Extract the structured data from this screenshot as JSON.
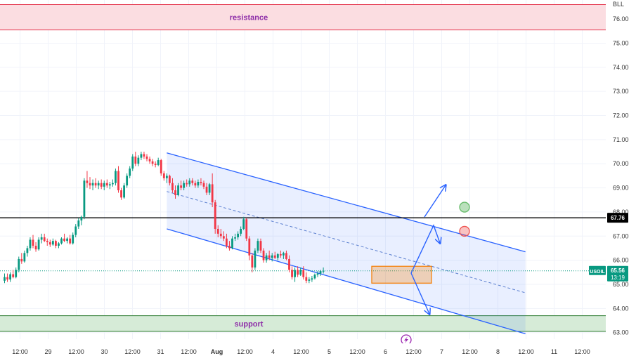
{
  "chart_data": {
    "type": "candlestick",
    "currency": "BLL",
    "symbol": "USOIL",
    "price_axis": {
      "range": [
        62.7,
        76.6
      ],
      "ticks": [
        76.0,
        75.0,
        74.0,
        73.0,
        72.0,
        71.0,
        70.0,
        69.0,
        68.0,
        67.0,
        66.0,
        65.0,
        64.0,
        63.0
      ]
    },
    "time_axis": {
      "labels": [
        "12:00",
        "29",
        "12:00",
        "30",
        "12:00",
        "31",
        "12:00",
        "Aug",
        "12:00",
        "4",
        "12:00",
        "5",
        "12:00",
        "6",
        "12:00",
        "7",
        "12:00",
        "8",
        "12:00",
        "11",
        "12:00"
      ],
      "bold_labels": [
        "Aug"
      ]
    },
    "current_price": {
      "label": "USOIL",
      "value": "65.56",
      "countdown": "13:19",
      "price": 65.56,
      "color": "#089981"
    },
    "horizontal_level": {
      "value": "67.76",
      "price": 67.76,
      "color": "#000000"
    },
    "zones": [
      {
        "label": "resistance",
        "from": 75.55,
        "to": 76.6,
        "fill": "#fbdde1",
        "border": "#e53950"
      },
      {
        "label": "support",
        "from": 63.05,
        "to": 63.7,
        "fill": "#d6ebd7",
        "border": "#2e7d32"
      }
    ],
    "channel": {
      "upper": [
        {
          "t": 57,
          "p": 70.45
        },
        {
          "t": 183,
          "p": 66.35
        }
      ],
      "lower": [
        {
          "t": 57,
          "p": 67.3
        },
        {
          "t": 183,
          "p": 62.95
        }
      ],
      "mid": [
        {
          "t": 57,
          "p": 68.85
        },
        {
          "t": 183,
          "p": 64.65
        }
      ],
      "color": "#2962ff"
    },
    "consolidation_box": {
      "t_from": 129,
      "t_to": 150,
      "p_from": 65.05,
      "p_to": 65.75,
      "color": "#f57c00"
    },
    "markers": [
      {
        "t": 165,
        "p": 68.2,
        "color": "#66bb6a"
      },
      {
        "t": 165,
        "p": 67.2,
        "color": "#ef5350"
      }
    ],
    "candles": [
      {
        "o": 65.15,
        "h": 65.45,
        "l": 65.05,
        "c": 65.3
      },
      {
        "o": 65.3,
        "h": 65.45,
        "l": 65.1,
        "c": 65.2
      },
      {
        "o": 65.2,
        "h": 65.5,
        "l": 65.1,
        "c": 65.42
      },
      {
        "o": 65.42,
        "h": 65.6,
        "l": 65.25,
        "c": 65.3
      },
      {
        "o": 65.3,
        "h": 65.7,
        "l": 65.25,
        "c": 65.6
      },
      {
        "o": 65.6,
        "h": 66.15,
        "l": 65.5,
        "c": 66.05
      },
      {
        "o": 66.05,
        "h": 66.3,
        "l": 65.85,
        "c": 65.95
      },
      {
        "o": 65.95,
        "h": 66.4,
        "l": 65.9,
        "c": 66.3
      },
      {
        "o": 66.3,
        "h": 66.6,
        "l": 66.15,
        "c": 66.5
      },
      {
        "o": 66.5,
        "h": 66.95,
        "l": 66.4,
        "c": 66.85
      },
      {
        "o": 66.85,
        "h": 67.05,
        "l": 66.5,
        "c": 66.6
      },
      {
        "o": 66.6,
        "h": 66.75,
        "l": 66.35,
        "c": 66.45
      },
      {
        "o": 66.45,
        "h": 66.95,
        "l": 66.4,
        "c": 66.85
      },
      {
        "o": 66.85,
        "h": 67.1,
        "l": 66.7,
        "c": 66.95
      },
      {
        "o": 66.95,
        "h": 67.1,
        "l": 66.75,
        "c": 66.8
      },
      {
        "o": 66.8,
        "h": 66.9,
        "l": 66.6,
        "c": 66.75
      },
      {
        "o": 66.75,
        "h": 66.85,
        "l": 66.55,
        "c": 66.65
      },
      {
        "o": 66.65,
        "h": 66.9,
        "l": 66.6,
        "c": 66.8
      },
      {
        "o": 66.8,
        "h": 66.85,
        "l": 66.5,
        "c": 66.6
      },
      {
        "o": 66.6,
        "h": 66.75,
        "l": 66.5,
        "c": 66.7
      },
      {
        "o": 66.7,
        "h": 66.95,
        "l": 66.65,
        "c": 66.9
      },
      {
        "o": 66.9,
        "h": 67.1,
        "l": 66.75,
        "c": 66.8
      },
      {
        "o": 66.8,
        "h": 66.95,
        "l": 66.7,
        "c": 66.9
      },
      {
        "o": 66.9,
        "h": 67.05,
        "l": 66.65,
        "c": 66.7
      },
      {
        "o": 66.7,
        "h": 67.15,
        "l": 66.65,
        "c": 67.05
      },
      {
        "o": 67.05,
        "h": 67.5,
        "l": 66.95,
        "c": 67.4
      },
      {
        "o": 67.4,
        "h": 67.75,
        "l": 67.3,
        "c": 67.65
      },
      {
        "o": 67.65,
        "h": 67.85,
        "l": 67.45,
        "c": 67.8
      },
      {
        "o": 67.8,
        "h": 69.4,
        "l": 67.7,
        "c": 69.3
      },
      {
        "o": 69.3,
        "h": 69.7,
        "l": 69.0,
        "c": 69.2
      },
      {
        "o": 69.2,
        "h": 69.45,
        "l": 68.95,
        "c": 69.1
      },
      {
        "o": 69.1,
        "h": 69.35,
        "l": 68.9,
        "c": 69.2
      },
      {
        "o": 69.2,
        "h": 69.4,
        "l": 69.0,
        "c": 69.1
      },
      {
        "o": 69.1,
        "h": 69.3,
        "l": 68.95,
        "c": 69.2
      },
      {
        "o": 69.2,
        "h": 69.35,
        "l": 68.95,
        "c": 69.05
      },
      {
        "o": 69.05,
        "h": 69.3,
        "l": 68.9,
        "c": 69.2
      },
      {
        "o": 69.2,
        "h": 69.35,
        "l": 69.0,
        "c": 69.1
      },
      {
        "o": 69.1,
        "h": 69.25,
        "l": 68.95,
        "c": 69.15
      },
      {
        "o": 69.15,
        "h": 69.35,
        "l": 69.05,
        "c": 69.2
      },
      {
        "o": 69.2,
        "h": 69.8,
        "l": 69.1,
        "c": 69.7
      },
      {
        "o": 69.7,
        "h": 69.9,
        "l": 68.8,
        "c": 68.9
      },
      {
        "o": 68.9,
        "h": 69.0,
        "l": 68.5,
        "c": 68.6
      },
      {
        "o": 68.6,
        "h": 69.2,
        "l": 68.55,
        "c": 69.1
      },
      {
        "o": 69.1,
        "h": 69.6,
        "l": 69.0,
        "c": 69.5
      },
      {
        "o": 69.5,
        "h": 69.9,
        "l": 69.4,
        "c": 69.8
      },
      {
        "o": 69.8,
        "h": 70.4,
        "l": 69.7,
        "c": 70.3
      },
      {
        "o": 70.3,
        "h": 70.5,
        "l": 69.9,
        "c": 70.0
      },
      {
        "o": 70.0,
        "h": 70.35,
        "l": 69.9,
        "c": 70.25
      },
      {
        "o": 70.25,
        "h": 70.5,
        "l": 70.15,
        "c": 70.4
      },
      {
        "o": 70.4,
        "h": 70.5,
        "l": 70.2,
        "c": 70.3
      },
      {
        "o": 70.3,
        "h": 70.4,
        "l": 70.1,
        "c": 70.2
      },
      {
        "o": 70.2,
        "h": 70.3,
        "l": 70.0,
        "c": 70.1
      },
      {
        "o": 70.1,
        "h": 70.2,
        "l": 69.9,
        "c": 70.0
      },
      {
        "o": 70.0,
        "h": 70.1,
        "l": 69.85,
        "c": 69.95
      },
      {
        "o": 69.95,
        "h": 70.25,
        "l": 69.9,
        "c": 70.15
      },
      {
        "o": 70.15,
        "h": 70.2,
        "l": 69.5,
        "c": 69.6
      },
      {
        "o": 69.6,
        "h": 69.7,
        "l": 69.3,
        "c": 69.4
      },
      {
        "o": 69.4,
        "h": 69.6,
        "l": 69.2,
        "c": 69.5
      },
      {
        "o": 69.5,
        "h": 69.55,
        "l": 69.1,
        "c": 69.2
      },
      {
        "o": 69.2,
        "h": 69.4,
        "l": 68.8,
        "c": 68.9
      },
      {
        "o": 68.9,
        "h": 69.1,
        "l": 68.55,
        "c": 68.7
      },
      {
        "o": 68.7,
        "h": 69.2,
        "l": 68.65,
        "c": 69.1
      },
      {
        "o": 69.1,
        "h": 69.3,
        "l": 68.9,
        "c": 69.0
      },
      {
        "o": 69.0,
        "h": 69.3,
        "l": 68.9,
        "c": 69.2
      },
      {
        "o": 69.2,
        "h": 69.35,
        "l": 69.05,
        "c": 69.15
      },
      {
        "o": 69.15,
        "h": 69.4,
        "l": 69.05,
        "c": 69.3
      },
      {
        "o": 69.3,
        "h": 69.4,
        "l": 69.1,
        "c": 69.2
      },
      {
        "o": 69.2,
        "h": 69.3,
        "l": 69.0,
        "c": 69.1
      },
      {
        "o": 69.1,
        "h": 69.35,
        "l": 69.0,
        "c": 69.25
      },
      {
        "o": 69.25,
        "h": 69.4,
        "l": 69.1,
        "c": 69.2
      },
      {
        "o": 69.2,
        "h": 69.3,
        "l": 68.95,
        "c": 69.05
      },
      {
        "o": 69.05,
        "h": 69.2,
        "l": 68.7,
        "c": 68.8
      },
      {
        "o": 68.8,
        "h": 69.2,
        "l": 68.7,
        "c": 69.15
      },
      {
        "o": 69.15,
        "h": 69.6,
        "l": 68.2,
        "c": 68.4
      },
      {
        "o": 68.4,
        "h": 68.5,
        "l": 67.1,
        "c": 67.3
      },
      {
        "o": 67.3,
        "h": 67.45,
        "l": 66.95,
        "c": 67.1
      },
      {
        "o": 67.1,
        "h": 67.3,
        "l": 66.9,
        "c": 67.0
      },
      {
        "o": 67.0,
        "h": 67.2,
        "l": 66.8,
        "c": 66.9
      },
      {
        "o": 66.9,
        "h": 67.1,
        "l": 66.5,
        "c": 66.6
      },
      {
        "o": 66.6,
        "h": 66.8,
        "l": 66.4,
        "c": 66.5
      },
      {
        "o": 66.5,
        "h": 67.0,
        "l": 66.45,
        "c": 66.9
      },
      {
        "o": 66.9,
        "h": 67.1,
        "l": 66.8,
        "c": 66.95
      },
      {
        "o": 66.95,
        "h": 67.2,
        "l": 66.85,
        "c": 67.1
      },
      {
        "o": 67.1,
        "h": 67.4,
        "l": 67.0,
        "c": 67.3
      },
      {
        "o": 67.3,
        "h": 67.8,
        "l": 67.25,
        "c": 67.7
      },
      {
        "o": 67.7,
        "h": 67.75,
        "l": 66.8,
        "c": 66.9
      },
      {
        "o": 66.9,
        "h": 67.0,
        "l": 66.0,
        "c": 66.2
      },
      {
        "o": 66.2,
        "h": 66.3,
        "l": 65.5,
        "c": 65.7
      },
      {
        "o": 65.7,
        "h": 66.5,
        "l": 65.6,
        "c": 66.4
      },
      {
        "o": 66.4,
        "h": 66.9,
        "l": 66.3,
        "c": 66.8
      },
      {
        "o": 66.8,
        "h": 66.9,
        "l": 66.3,
        "c": 66.4
      },
      {
        "o": 66.4,
        "h": 66.5,
        "l": 65.9,
        "c": 66.0
      },
      {
        "o": 66.0,
        "h": 66.3,
        "l": 65.9,
        "c": 66.2
      },
      {
        "o": 66.2,
        "h": 66.4,
        "l": 66.0,
        "c": 66.1
      },
      {
        "o": 66.1,
        "h": 66.3,
        "l": 65.95,
        "c": 66.2
      },
      {
        "o": 66.2,
        "h": 66.35,
        "l": 66.05,
        "c": 66.1
      },
      {
        "o": 66.1,
        "h": 66.3,
        "l": 66.0,
        "c": 66.25
      },
      {
        "o": 66.25,
        "h": 66.4,
        "l": 66.1,
        "c": 66.2
      },
      {
        "o": 66.2,
        "h": 66.35,
        "l": 66.05,
        "c": 66.3
      },
      {
        "o": 66.3,
        "h": 66.4,
        "l": 66.0,
        "c": 66.05
      },
      {
        "o": 66.05,
        "h": 66.2,
        "l": 65.5,
        "c": 65.6
      },
      {
        "o": 65.6,
        "h": 65.75,
        "l": 65.2,
        "c": 65.3
      },
      {
        "o": 65.3,
        "h": 65.7,
        "l": 65.1,
        "c": 65.6
      },
      {
        "o": 65.6,
        "h": 65.75,
        "l": 65.3,
        "c": 65.4
      },
      {
        "o": 65.4,
        "h": 65.7,
        "l": 65.35,
        "c": 65.6
      },
      {
        "o": 65.6,
        "h": 65.75,
        "l": 65.2,
        "c": 65.3
      },
      {
        "o": 65.3,
        "h": 65.5,
        "l": 65.05,
        "c": 65.15
      },
      {
        "o": 65.15,
        "h": 65.3,
        "l": 65.05,
        "c": 65.2
      },
      {
        "o": 65.2,
        "h": 65.35,
        "l": 65.1,
        "c": 65.25
      },
      {
        "o": 65.25,
        "h": 65.45,
        "l": 65.2,
        "c": 65.4
      },
      {
        "o": 65.4,
        "h": 65.55,
        "l": 65.3,
        "c": 65.45
      },
      {
        "o": 65.45,
        "h": 65.6,
        "l": 65.35,
        "c": 65.55
      },
      {
        "o": 65.55,
        "h": 65.7,
        "l": 65.45,
        "c": 65.56
      }
    ]
  }
}
